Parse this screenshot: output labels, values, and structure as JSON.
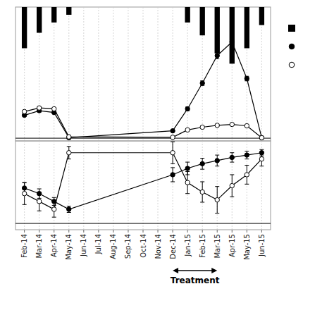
{
  "chart_data": [
    {
      "type": "line",
      "categories": [
        "Feb-14",
        "Mar-14",
        "Apr-14",
        "May-14",
        "Jun-14",
        "Jul-14",
        "Aug-14",
        "Sep-14",
        "Oct-14",
        "Nov-14",
        "Dec-14",
        "Jan-15",
        "Feb-15",
        "Mar-15",
        "Apr-15",
        "May-15",
        "Jun-15"
      ],
      "ylim": [
        -0.3,
        14.3
      ],
      "y2lim": [
        26,
        0
      ],
      "tick_labels": false,
      "grid": true,
      "legend": "right",
      "series": [
        {
          "type": "bar",
          "axis": "y2",
          "color": "black",
          "x": [
            "Feb-14",
            "Mar-14",
            "Apr-14",
            "May-14",
            "Jan-15",
            "Feb-15",
            "Mar-15",
            "Apr-15",
            "May-15",
            "Jun-15"
          ],
          "values": [
            8.0,
            5.0,
            3.0,
            1.5,
            3.0,
            5.5,
            9.0,
            11.0,
            8.0,
            3.5
          ]
        },
        {
          "type": "line",
          "color": "black",
          "marker": "circle",
          "line_style": "solid",
          "x": [
            "Feb-14",
            "Mar-14",
            "Apr-14",
            "May-14",
            "Dec-14",
            "Jan-15",
            "Feb-15",
            "Mar-15",
            "Apr-15",
            "May-15",
            "Jun-15"
          ],
          "values": [
            2.5,
            3.0,
            2.8,
            0.05,
            0.8,
            3.2,
            6.0,
            9.0,
            10.5,
            6.5,
            0.05
          ],
          "errors": [
            0.1,
            0.15,
            0.12,
            0.02,
            0.06,
            0.2,
            0.25,
            0.35,
            0.3,
            0.25,
            0.02
          ]
        },
        {
          "type": "line",
          "color": "black",
          "marker": "open-circle",
          "line_style": "solid",
          "x": [
            "Feb-14",
            "Mar-14",
            "Apr-14",
            "May-14",
            "Dec-14",
            "Jan-15",
            "Feb-15",
            "Mar-15",
            "Apr-15",
            "May-15",
            "Jun-15"
          ],
          "values": [
            2.9,
            3.3,
            3.2,
            0.15,
            0.1,
            0.9,
            1.2,
            1.4,
            1.5,
            1.35,
            0.05
          ],
          "errors": [
            0.08,
            0.1,
            0.1,
            0.03,
            0.03,
            0.08,
            0.08,
            0.1,
            0.08,
            0.08,
            0.02
          ]
        }
      ]
    },
    {
      "type": "line",
      "categories": [
        "Feb-14",
        "Mar-14",
        "Apr-14",
        "May-14",
        "Jun-14",
        "Jul-14",
        "Aug-14",
        "Sep-14",
        "Oct-14",
        "Nov-14",
        "Dec-14",
        "Jan-15",
        "Feb-15",
        "Mar-15",
        "Apr-15",
        "May-15",
        "Jun-15"
      ],
      "ylim": [
        -0.08,
        1.05
      ],
      "tick_labels": "x",
      "grid": true,
      "series": [
        {
          "type": "line",
          "color": "black",
          "marker": "circle",
          "line_style": "solid",
          "x": [
            "Feb-14",
            "Mar-14",
            "Apr-14",
            "May-14",
            "Dec-14",
            "Jan-15",
            "Feb-15",
            "Mar-15",
            "Apr-15",
            "May-15",
            "Jun-15"
          ],
          "values": [
            0.45,
            0.38,
            0.28,
            0.18,
            0.62,
            0.7,
            0.76,
            0.8,
            0.84,
            0.87,
            0.9
          ],
          "errors": [
            0.07,
            0.06,
            0.05,
            0.04,
            0.09,
            0.08,
            0.07,
            0.07,
            0.06,
            0.05,
            0.04
          ]
        },
        {
          "type": "line",
          "color": "black",
          "marker": "open-circle",
          "line_style": "solid",
          "x": [
            "Feb-14",
            "Mar-14",
            "Apr-14",
            "May-14",
            "Dec-14",
            "Jan-15",
            "Feb-15",
            "Mar-15",
            "Apr-15",
            "May-15",
            "Jun-15"
          ],
          "values": [
            0.38,
            0.28,
            0.18,
            0.9,
            0.9,
            0.52,
            0.4,
            0.3,
            0.48,
            0.62,
            0.82
          ],
          "errors": [
            0.14,
            0.12,
            0.1,
            0.08,
            0.14,
            0.14,
            0.13,
            0.17,
            0.14,
            0.12,
            0.09
          ]
        }
      ],
      "annotations": [
        {
          "text": "Treatment",
          "x": [
            "Dec-14",
            "Mar-15"
          ]
        }
      ]
    }
  ]
}
